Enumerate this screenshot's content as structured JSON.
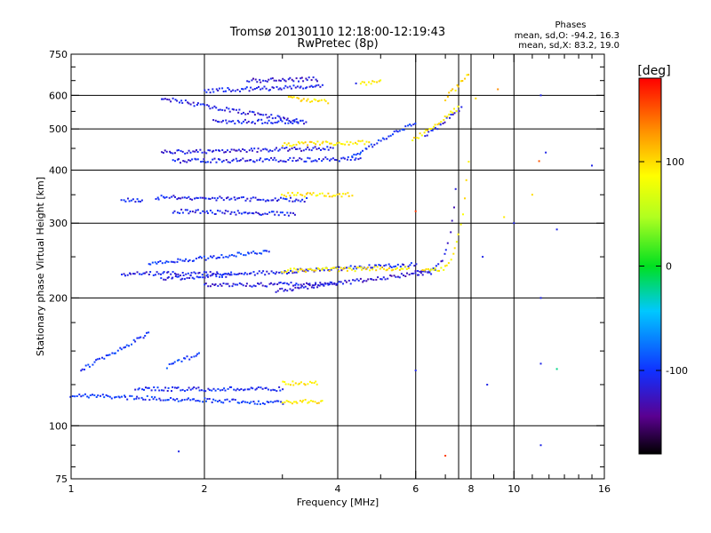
{
  "chart_data": {
    "type": "scatter",
    "title": "Tromsø 20130110 12:18:00-12:19:43",
    "subtitle": "RwPretec (8p)",
    "xlabel": "Frequency [MHz]",
    "ylabel": "Stationary phase Virtual Height [km]",
    "x_scale": "log",
    "y_scale": "log",
    "xlim": [
      1,
      16
    ],
    "ylim": [
      75,
      750
    ],
    "x_ticks": [
      1,
      2,
      4,
      6,
      8,
      10,
      16
    ],
    "x_tick_labels": [
      "1",
      "2",
      "4",
      "6",
      "8",
      "10",
      "16"
    ],
    "y_ticks": [
      75,
      100,
      200,
      300,
      400,
      500,
      600,
      750
    ],
    "y_tick_labels": [
      "75",
      "100",
      "200",
      "300",
      "400",
      "500",
      "600",
      "750"
    ],
    "x_minor_ticks": [
      3,
      5,
      7,
      9,
      11,
      12,
      13,
      14,
      15
    ],
    "y_minor_ticks": [
      80,
      90,
      125,
      150,
      175,
      250,
      350,
      450,
      550,
      650,
      700
    ],
    "grid": true,
    "phases_box": {
      "heading": "Phases",
      "line_o": "mean, sd,O: -94.2, 16.3",
      "line_x": "mean, sd,X:  83.2, 19.0"
    },
    "colorbar": {
      "label": "[deg]",
      "range": [
        -180,
        180
      ],
      "ticks": [
        -100,
        0,
        100
      ],
      "tick_labels": [
        "-100",
        "0",
        "100"
      ]
    },
    "traces": [
      {
        "name": "",
        "f1": 1.0,
        "f2": 3.0,
        "h1": 118,
        "h2": 113,
        "curve": 0,
        "phase": -100
      },
      {
        "name": "",
        "f1": 1.4,
        "f2": 3.0,
        "h1": 122,
        "h2": 122,
        "curve": 0,
        "phase": -105
      },
      {
        "name": "",
        "f1": 3.0,
        "f2": 3.7,
        "h1": 114,
        "h2": 114,
        "curve": 0,
        "phase": 95
      },
      {
        "name": "",
        "f1": 3.0,
        "f2": 3.6,
        "h1": 126,
        "h2": 126,
        "curve": 0,
        "phase": 95
      },
      {
        "name": "",
        "f1": 1.05,
        "f2": 1.5,
        "h1": 135,
        "h2": 165,
        "curve": 0,
        "phase": -100
      },
      {
        "name": "",
        "f1": 1.65,
        "f2": 1.95,
        "h1": 138,
        "h2": 148,
        "curve": 0,
        "phase": -95
      },
      {
        "name": "",
        "f1": 1.3,
        "f2": 2.3,
        "h1": 228,
        "h2": 228,
        "curve": 0,
        "phase": -110
      },
      {
        "name": "",
        "f1": 1.6,
        "f2": 6.0,
        "h1": 222,
        "h2": 240,
        "curve": 0,
        "phase": -110
      },
      {
        "name": "",
        "f1": 2.0,
        "f2": 4.0,
        "h1": 214,
        "h2": 216,
        "curve": 0,
        "phase": -115
      },
      {
        "name": "",
        "f1": 2.9,
        "f2": 6.5,
        "h1": 208,
        "h2": 230,
        "curve": 0,
        "phase": -120
      },
      {
        "name": "",
        "f1": 6.0,
        "f2": 7.4,
        "h1": 232,
        "h2": 360,
        "curve": 2.4,
        "phase": -115
      },
      {
        "name": "",
        "f1": 3.0,
        "f2": 5.8,
        "h1": 232,
        "h2": 235,
        "curve": 0,
        "phase": 95
      },
      {
        "name": "",
        "f1": 6.2,
        "f2": 7.9,
        "h1": 232,
        "h2": 420,
        "curve": 2.4,
        "phase": 90
      },
      {
        "name": "",
        "f1": 1.5,
        "f2": 2.8,
        "h1": 240,
        "h2": 258,
        "curve": 0,
        "phase": -100
      },
      {
        "name": "",
        "f1": 1.3,
        "f2": 1.45,
        "h1": 340,
        "h2": 340,
        "curve": 0,
        "phase": -105
      },
      {
        "name": "",
        "f1": 1.55,
        "f2": 3.4,
        "h1": 345,
        "h2": 340,
        "curve": 0,
        "phase": -110
      },
      {
        "name": "",
        "f1": 1.7,
        "f2": 3.2,
        "h1": 320,
        "h2": 315,
        "curve": 0,
        "phase": -110
      },
      {
        "name": "",
        "f1": 3.0,
        "f2": 4.3,
        "h1": 350,
        "h2": 350,
        "curve": 0,
        "phase": 95
      },
      {
        "name": "",
        "f1": 1.6,
        "f2": 3.9,
        "h1": 440,
        "h2": 450,
        "curve": 0,
        "phase": -115
      },
      {
        "name": "",
        "f1": 1.7,
        "f2": 4.5,
        "h1": 420,
        "h2": 425,
        "curve": 0,
        "phase": -110
      },
      {
        "name": "",
        "f1": 3.0,
        "f2": 4.7,
        "h1": 460,
        "h2": 465,
        "curve": 0,
        "phase": 95
      },
      {
        "name": "",
        "f1": 4.3,
        "f2": 6.0,
        "h1": 430,
        "h2": 520,
        "curve": 0,
        "phase": -100
      },
      {
        "name": "",
        "f1": 6.3,
        "f2": 7.6,
        "h1": 480,
        "h2": 560,
        "curve": 0,
        "phase": -115
      },
      {
        "name": "",
        "f1": 5.9,
        "f2": 7.5,
        "h1": 470,
        "h2": 560,
        "curve": 0,
        "phase": 95
      },
      {
        "name": "",
        "f1": 1.6,
        "f2": 3.3,
        "h1": 590,
        "h2": 520,
        "curve": 0,
        "phase": -115
      },
      {
        "name": "",
        "f1": 2.1,
        "f2": 3.4,
        "h1": 520,
        "h2": 520,
        "curve": 0,
        "phase": -110
      },
      {
        "name": "",
        "f1": 2.0,
        "f2": 3.7,
        "h1": 615,
        "h2": 630,
        "curve": 0,
        "phase": -110
      },
      {
        "name": "",
        "f1": 2.5,
        "f2": 3.6,
        "h1": 650,
        "h2": 655,
        "curve": 0,
        "phase": -120
      },
      {
        "name": "",
        "f1": 3.1,
        "f2": 3.8,
        "h1": 590,
        "h2": 580,
        "curve": 0,
        "phase": 95
      },
      {
        "name": "",
        "f1": 4.5,
        "f2": 5.0,
        "h1": 640,
        "h2": 645,
        "curve": 0,
        "phase": 95
      },
      {
        "name": "",
        "f1": 7.0,
        "f2": 7.9,
        "h1": 590,
        "h2": 670,
        "curve": 0,
        "phase": 100
      }
    ],
    "isolated_points": [
      {
        "x": 11.5,
        "y": 600,
        "phase": -110
      },
      {
        "x": 11.8,
        "y": 440,
        "phase": -110
      },
      {
        "x": 11.4,
        "y": 420,
        "phase": 150
      },
      {
        "x": 11.0,
        "y": 350,
        "phase": 100
      },
      {
        "x": 12.5,
        "y": 290,
        "phase": -110
      },
      {
        "x": 10.0,
        "y": 300,
        "phase": -110
      },
      {
        "x": 9.5,
        "y": 310,
        "phase": 95
      },
      {
        "x": 15.0,
        "y": 410,
        "phase": -110
      },
      {
        "x": 6.0,
        "y": 320,
        "phase": 160
      },
      {
        "x": 8.5,
        "y": 250,
        "phase": -110
      },
      {
        "x": 11.5,
        "y": 200,
        "phase": -110
      },
      {
        "x": 11.5,
        "y": 140,
        "phase": -110
      },
      {
        "x": 12.5,
        "y": 136,
        "phase": -20
      },
      {
        "x": 8.7,
        "y": 125,
        "phase": -110
      },
      {
        "x": 6.0,
        "y": 135,
        "phase": -110
      },
      {
        "x": 7.0,
        "y": 85,
        "phase": 160
      },
      {
        "x": 11.5,
        "y": 90,
        "phase": -110
      },
      {
        "x": 1.75,
        "y": 87,
        "phase": -110
      },
      {
        "x": 9.2,
        "y": 620,
        "phase": 130
      },
      {
        "x": 8.2,
        "y": 590,
        "phase": 100
      },
      {
        "x": 4.4,
        "y": 640,
        "phase": -110
      }
    ]
  }
}
